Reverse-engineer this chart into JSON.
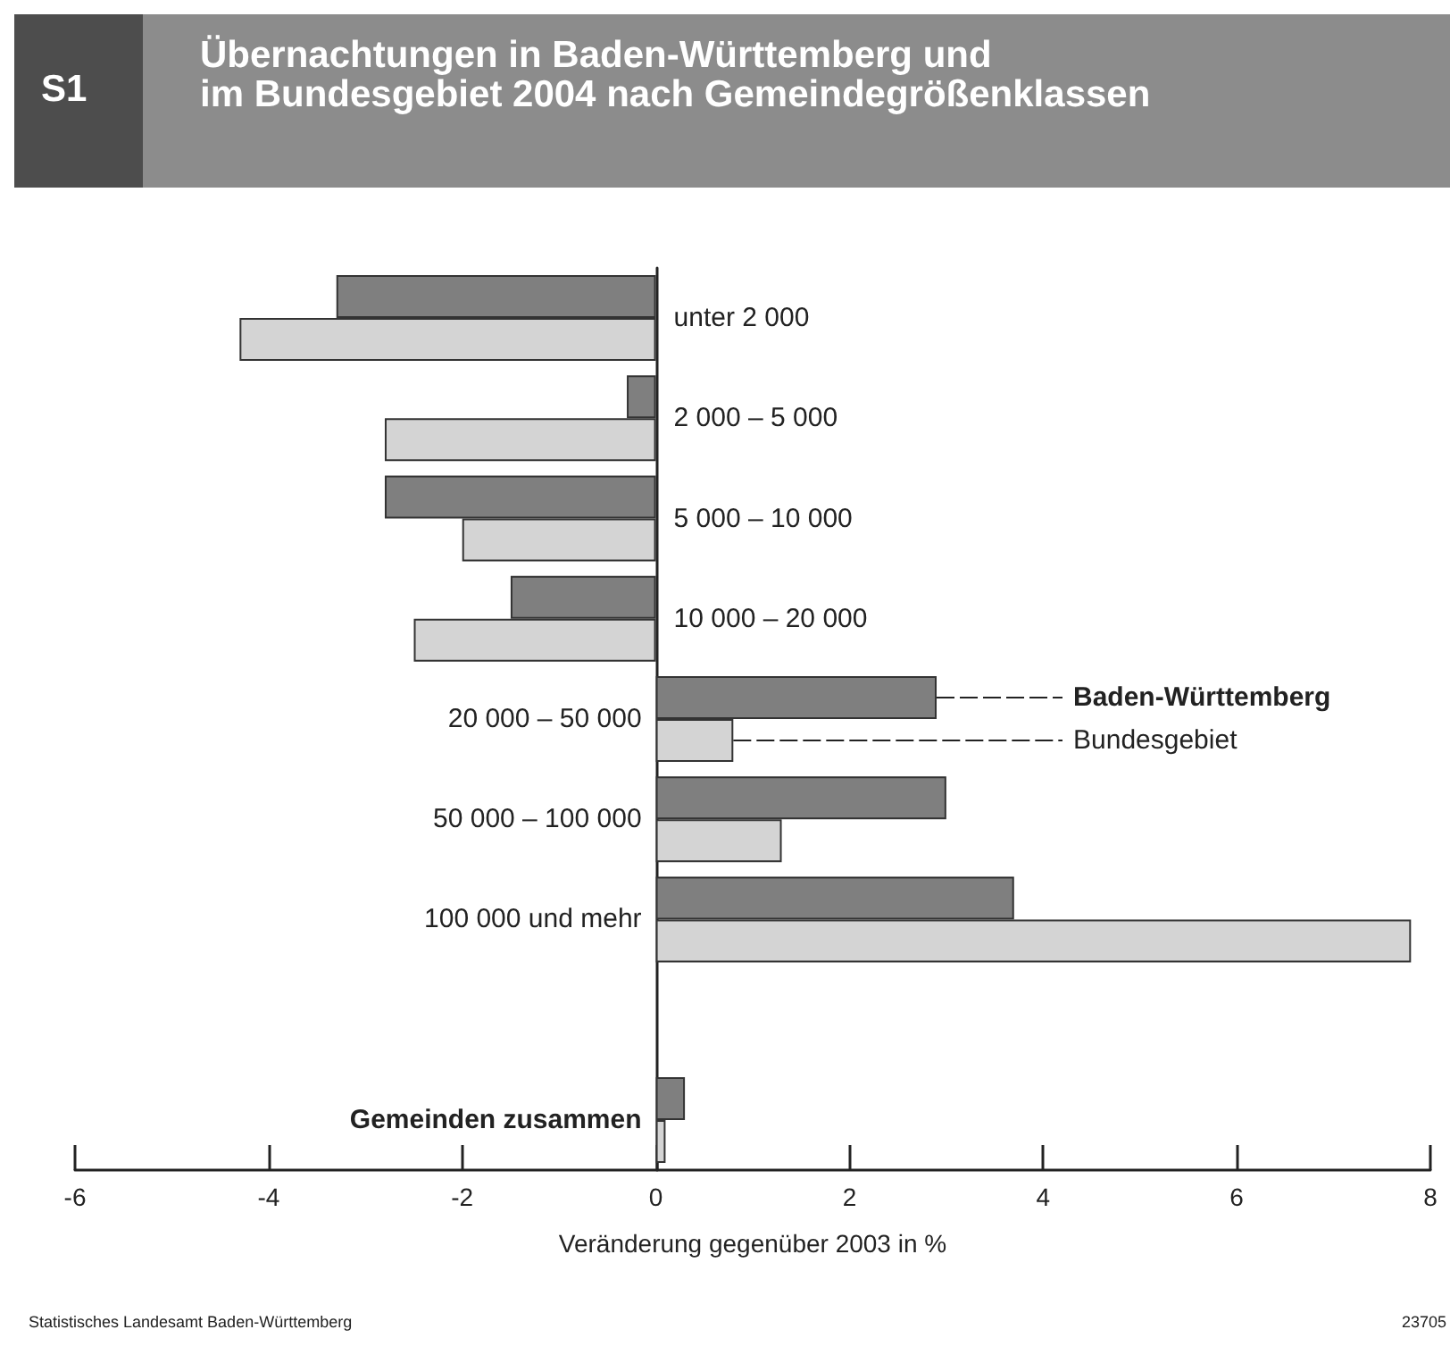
{
  "chart_data": {
    "type": "bar",
    "orientation": "horizontal",
    "title": "Übernachtungen in Baden-Württemberg und\nim Bundesgebiet 2004 nach Gemeindegrößenklassen",
    "xlabel": "Veränderung gegenüber 2003 in %",
    "categories": [
      "unter 2 000",
      "2 000 – 5 000",
      "5 000 – 10 000",
      "10 000 – 20 000",
      "20 000 – 50 000",
      "50 000 – 100 000",
      "100 000 und mehr",
      null,
      "Gemeinden zusammen"
    ],
    "series": [
      {
        "name": "Baden-Württemberg",
        "color": "#7f7f7f",
        "values": [
          -3.3,
          -0.3,
          -2.8,
          -1.5,
          2.9,
          3.0,
          3.7,
          null,
          0.3
        ]
      },
      {
        "name": "Bundesgebiet",
        "color": "#d4d4d4",
        "values": [
          -4.3,
          -2.8,
          -2.0,
          -2.5,
          0.8,
          1.3,
          7.8,
          null,
          0.1
        ]
      }
    ],
    "xlim": [
      -6,
      8
    ],
    "xticks": [
      -6,
      -4,
      -2,
      0,
      2,
      4,
      6,
      8
    ],
    "grid": false,
    "legend": "right",
    "annotations": [
      "S1",
      "Statistisches Landesamt Baden-Württemberg",
      "23705"
    ]
  }
}
